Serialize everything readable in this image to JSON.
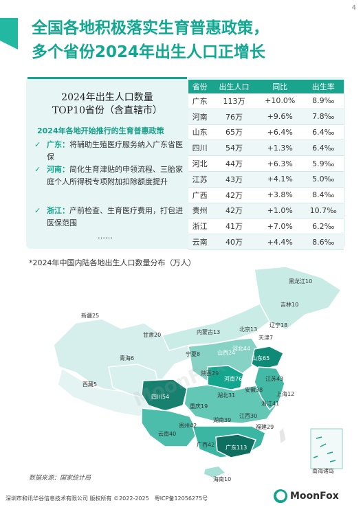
{
  "page_number": "4",
  "title_line1": "全国各地积极落实生育普惠政策，",
  "title_line2": "多个省份2024年出生人口正增长",
  "panel": {
    "title_line1": "2024年出生人口数量",
    "title_line2": "TOP10省份（含直辖市）",
    "policy_heading": "2024年各地开始推行的生育普惠政策",
    "policies": [
      {
        "check": "✓",
        "province": "广东：",
        "text": "将辅助生殖医疗服务纳入广东省医保"
      },
      {
        "check": "✓",
        "province": "河南：",
        "text": "简化生育津贴的申领流程、三胎家庭个人所得税专项附加扣除额度提升"
      },
      {
        "check": "✓",
        "province": "浙江：",
        "text": "产前检查、生育医疗费用，打包进医保范围"
      }
    ],
    "ellipsis": "……"
  },
  "table": {
    "headers": [
      "省份",
      "出生人口",
      "同比",
      "出生率"
    ],
    "rows": [
      [
        "广东",
        "113万",
        "+10.0%",
        "8.9‰"
      ],
      [
        "河南",
        "76万",
        "+9.6%",
        "7.8‰"
      ],
      [
        "山东",
        "65万",
        "+6.4%",
        "6.4‰"
      ],
      [
        "四川",
        "54万",
        "+1.3%",
        "6.4‰"
      ],
      [
        "河北",
        "44万",
        "+6.3%",
        "5.9‰"
      ],
      [
        "江苏",
        "43万",
        "+4.1%",
        "5.0‰"
      ],
      [
        "广西",
        "42万",
        "+3.8%",
        "8.4‰"
      ],
      [
        "贵州",
        "42万",
        "+1.0%",
        "10.7‰"
      ],
      [
        "浙江",
        "41万",
        "+7.0%",
        "6.2‰"
      ],
      [
        "云南",
        "40万",
        "+4.4%",
        "8.6‰"
      ]
    ]
  },
  "map": {
    "note": "*2024年中国内陆各地出生人口数量分布（万人）",
    "labels": {
      "heilongjiang": "黑龙江10",
      "jilin": "吉林10",
      "liaoning": "辽宁18",
      "xinjiang": "新疆25",
      "neimenggu": "内蒙古13",
      "gansu": "甘肃20",
      "beijing": "北京13",
      "tianjin": "天津7",
      "hebei": "河北44",
      "shanxi": "山西24",
      "shandong": "山东65",
      "ningxia": "宁夏8",
      "qinghai": "青海6",
      "shaanxi": "陕西29",
      "henan": "河南76",
      "jiangsu": "江苏43",
      "shanghai": "上海12",
      "xizang": "西藏5",
      "sichuan": "四川54",
      "chongqing": "重庆19",
      "hubei": "湖北31",
      "anhui": "安徽38",
      "zhejiang": "浙江41",
      "guizhou": "贵州42",
      "hunan": "湖南39",
      "jiangxi": "江西30",
      "fujian": "福建29",
      "yunnan": "云南40",
      "guangxi": "广西42",
      "guangdong": "广东113",
      "hainan": "海南10",
      "south_sea": "南海诸岛"
    }
  },
  "source": "数据来源：国家统计局",
  "footer": "深圳市和讯华谷信息技术有限公司 版权所有 ©2022-2025　粤ICP备12056275号",
  "logo": "MoonFox",
  "watermark": "MoonFox",
  "colors": {
    "accent": "#14a58e",
    "dark": "#0f7c6c",
    "light": "#cfeeea"
  }
}
